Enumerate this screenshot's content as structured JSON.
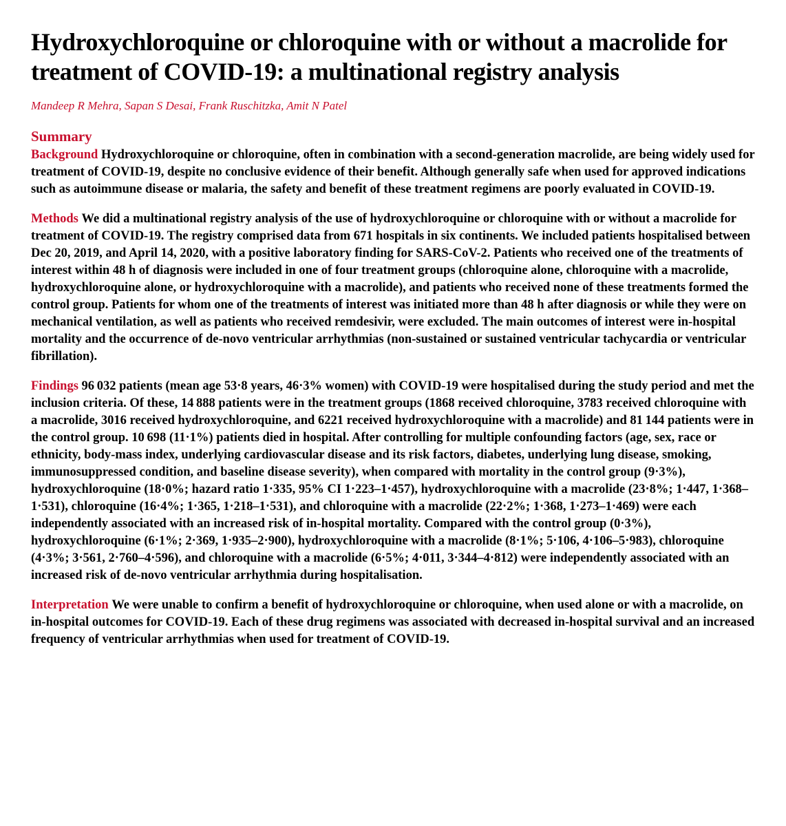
{
  "title": "Hydroxychloroquine or chloroquine with or without a macrolide for treatment of COVID-19: a multinational registry analysis",
  "authors": "Mandeep R Mehra, Sapan S Desai, Frank Ruschitzka, Amit N Patel",
  "summary_heading": "Summary",
  "sections": {
    "background": {
      "label": "Background ",
      "text": "Hydroxychloroquine or chloroquine, often in combination with a second-generation macrolide, are being widely used for treatment of COVID-19, despite no conclusive evidence of their benefit. Although generally safe when used for approved indications such as autoimmune disease or malaria, the safety and benefit of these treatment regimens are poorly evaluated in COVID-19."
    },
    "methods": {
      "label": "Methods ",
      "text": "We did a multinational registry analysis of the use of hydroxychloroquine or chloroquine with or without a macrolide for treatment of COVID-19. The registry comprised data from 671 hospitals in six continents. We included patients hospitalised between Dec 20, 2019, and April 14, 2020, with a positive laboratory finding for SARS-CoV-2. Patients who received one of the treatments of interest within 48 h of diagnosis were included in one of four treatment groups (chloroquine alone, chloroquine with a macrolide, hydroxychloroquine alone, or hydroxychloroquine with a macrolide), and patients who received none of these treatments formed the control group. Patients for whom one of the treatments of interest was initiated more than 48 h after diagnosis or while they were on mechanical ventilation, as well as patients who received remdesivir, were excluded. The main outcomes of interest were in-hospital mortality and the occurrence of de-novo ventricular arrhythmias (non-sustained or sustained ventricular tachycardia or ventricular fibrillation)."
    },
    "findings": {
      "label": "Findings ",
      "text": "96 032 patients (mean age 53·8 years, 46·3% women) with COVID-19 were hospitalised during the study period and met the inclusion criteria. Of these, 14 888 patients were in the treatment groups (1868 received chloroquine, 3783 received chloroquine with a macrolide, 3016 received hydroxychloroquine, and 6221 received hydroxychloroquine with a macrolide) and 81 144 patients were in the control group. 10 698 (11·1%) patients died in hospital. After controlling for multiple confounding factors (age, sex, race or ethnicity, body-mass index, underlying cardiovascular disease and its risk factors, diabetes, underlying lung disease, smoking, immunosuppressed condition, and baseline disease severity), when compared with mortality in the control group (9·3%), hydroxychloroquine (18·0%; hazard ratio 1·335, 95% CI 1·223–1·457), hydroxychloroquine with a macrolide (23·8%; 1·447, 1·368–1·531), chloroquine (16·4%; 1·365, 1·218–1·531), and chloroquine with a macrolide (22·2%; 1·368, 1·273–1·469) were each independently associated with an increased risk of in-hospital mortality. Compared with the control group (0·3%), hydroxychloroquine (6·1%; 2·369, 1·935–2·900), hydroxychloroquine with a macrolide (8·1%; 5·106, 4·106–5·983), chloroquine (4·3%; 3·561, 2·760–4·596), and chloroquine with a macrolide (6·5%; 4·011, 3·344–4·812) were independently associated with an increased risk of de-novo ventricular arrhythmia during hospitalisation."
    },
    "interpretation": {
      "label": "Interpretation ",
      "text": "We were unable to confirm a benefit of hydroxychloroquine or chloroquine, when used alone or with a macrolide, on in-hospital outcomes for COVID-19. Each of these drug regimens was associated with decreased in-hospital survival and an increased frequency of ventricular arrhythmias when used for treatment of COVID-19."
    }
  },
  "colors": {
    "accent": "#c8102e",
    "text": "#000000",
    "background": "#ffffff"
  },
  "typography": {
    "title_fontsize": 36,
    "authors_fontsize": 17,
    "summary_heading_fontsize": 21,
    "body_fontsize": 18.5,
    "font_family": "Georgia, serif"
  }
}
